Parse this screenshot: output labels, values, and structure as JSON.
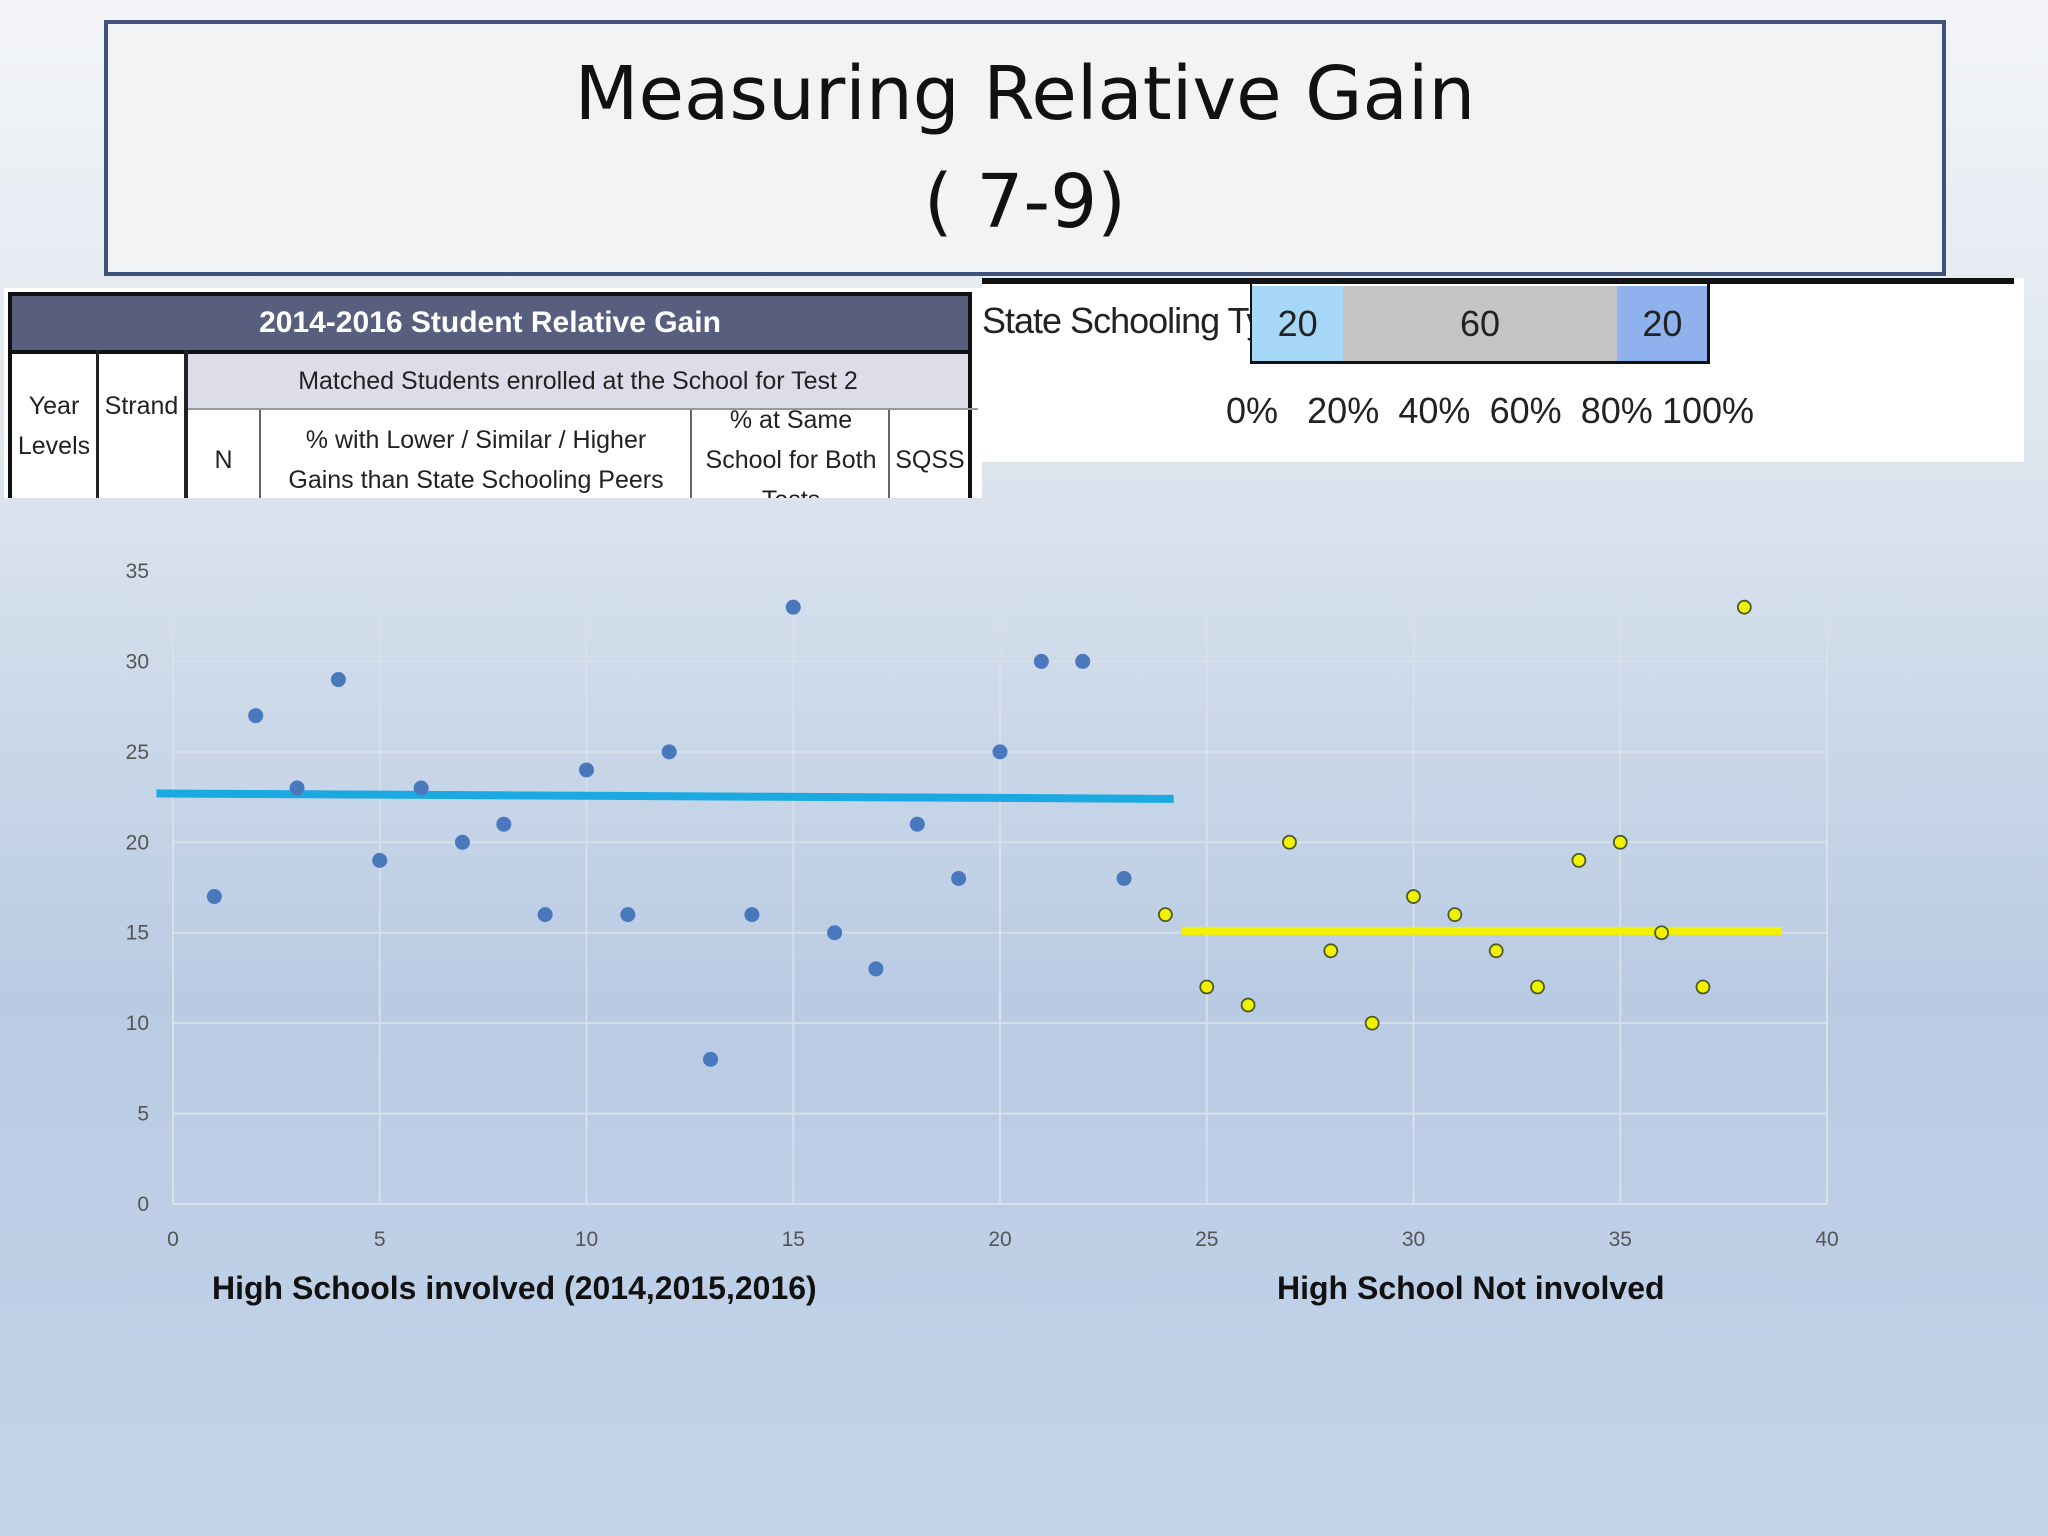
{
  "title": {
    "line1": "Measuring Relative Gain",
    "line2": "( 7-9)"
  },
  "table": {
    "header": "2014-2016 Student Relative Gain",
    "col_year": "Year Levels",
    "col_strand": "Strand",
    "group_header": "Matched Students enrolled at the School for Test 2",
    "col_n": "N",
    "col_gains": "% with Lower / Similar / Higher Gains than State Schooling Peers",
    "col_same_school": "% at Same School for Both Tests",
    "col_sqss": "SQSS"
  },
  "legend_bar": {
    "label": "State Schooling Typically",
    "segments": [
      {
        "value": 20,
        "color": "#a6d7f7"
      },
      {
        "value": 60,
        "color": "#c4c4c4"
      },
      {
        "value": 20,
        "color": "#8fb2ee"
      }
    ],
    "ticks": [
      "0%",
      "20%",
      "40%",
      "60%",
      "80%",
      "100%"
    ]
  },
  "chart_data": {
    "type": "scatter",
    "xlim": [
      0,
      40
    ],
    "ylim": [
      0,
      35
    ],
    "x_ticks": [
      0,
      5,
      10,
      15,
      20,
      25,
      30,
      35,
      40
    ],
    "y_ticks": [
      0,
      5,
      10,
      15,
      20,
      25,
      30,
      35
    ],
    "grid": true,
    "series": [
      {
        "color": "#4a78bd",
        "points": [
          [
            1,
            17
          ],
          [
            2,
            27
          ],
          [
            3,
            23
          ],
          [
            4,
            29
          ],
          [
            5,
            19
          ],
          [
            6,
            23
          ],
          [
            7,
            20
          ],
          [
            8,
            21
          ],
          [
            9,
            16
          ],
          [
            10,
            24
          ],
          [
            11,
            16
          ],
          [
            12,
            25
          ],
          [
            13,
            8
          ],
          [
            14,
            16
          ],
          [
            15,
            33
          ],
          [
            16,
            15
          ],
          [
            17,
            13
          ],
          [
            18,
            21
          ],
          [
            19,
            18
          ],
          [
            20,
            25
          ],
          [
            21,
            30
          ],
          [
            22,
            30
          ],
          [
            23,
            18
          ]
        ],
        "trend": {
          "x": [
            -0.4,
            24.2
          ],
          "y": [
            22.7,
            22.4
          ],
          "color": "#1aa9e0"
        }
      },
      {
        "color": "#f2f200",
        "points": [
          [
            24,
            16
          ],
          [
            25,
            12
          ],
          [
            26,
            11
          ],
          [
            27,
            20
          ],
          [
            28,
            14
          ],
          [
            29,
            10
          ],
          [
            30,
            17
          ],
          [
            31,
            16
          ],
          [
            32,
            14
          ],
          [
            33,
            12
          ],
          [
            34,
            19
          ],
          [
            35,
            20
          ],
          [
            36,
            15
          ],
          [
            37,
            12
          ],
          [
            38,
            33
          ]
        ],
        "trend": {
          "x": [
            24.4,
            38.9
          ],
          "y": [
            15.1,
            15.1
          ],
          "color": "#f2f200"
        }
      }
    ],
    "annotations": [
      "High Schools involved (2014,2015,2016)",
      "High School Not involved"
    ]
  }
}
